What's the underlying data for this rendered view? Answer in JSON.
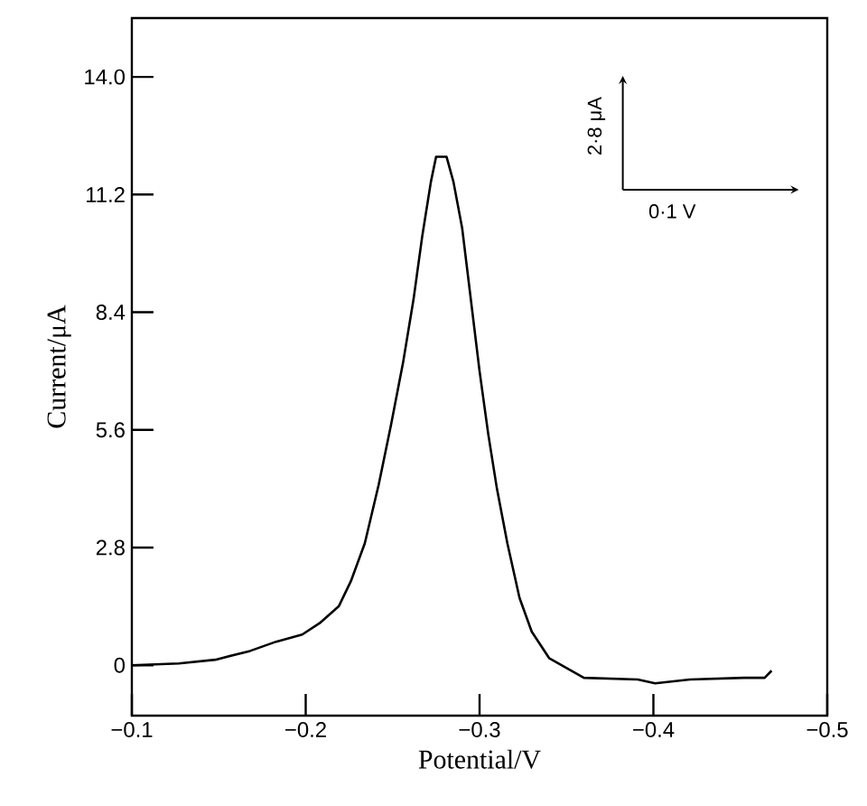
{
  "chart_data": {
    "type": "line",
    "xlabel": "Potential/V",
    "ylabel": "Current/μA",
    "annotations": [
      "2·8 μA",
      "0·1 V"
    ],
    "x": [
      -0.1,
      -0.127,
      -0.148,
      -0.168,
      -0.183,
      -0.198,
      -0.208,
      -0.219,
      -0.226,
      -0.234,
      -0.242,
      -0.249,
      -0.256,
      -0.262,
      -0.267,
      -0.272,
      -0.275,
      -0.281,
      -0.285,
      -0.29,
      -0.295,
      -0.3,
      -0.305,
      -0.31,
      -0.316,
      -0.323,
      -0.33,
      -0.34,
      -0.36,
      -0.391,
      -0.401,
      -0.421,
      -0.452,
      -0.464,
      -0.468
    ],
    "values": [
      0,
      0.04,
      0.13,
      0.34,
      0.56,
      0.73,
      1.0,
      1.4,
      2.0,
      2.9,
      4.3,
      5.7,
      7.2,
      8.7,
      10.2,
      11.5,
      12.1,
      12.1,
      11.5,
      10.4,
      8.7,
      7.0,
      5.5,
      4.2,
      2.9,
      1.6,
      0.8,
      0.17,
      -0.3,
      -0.34,
      -0.43,
      -0.34,
      -0.3,
      -0.3,
      -0.13
    ],
    "color": "#000000",
    "xlim": [
      -0.1,
      -0.5
    ],
    "ylim": [
      -1.2,
      15.4
    ],
    "xticks": [
      {
        "value": -0.1,
        "label": "−0.1"
      },
      {
        "value": -0.2,
        "label": "−0.2"
      },
      {
        "value": -0.3,
        "label": "−0.3"
      },
      {
        "value": -0.4,
        "label": "−0.4"
      },
      {
        "value": -0.5,
        "label": "−0.5"
      }
    ],
    "yticks": [
      0,
      2.8,
      5.6,
      8.4,
      11.2,
      {
        "value": 14.0,
        "label": "14.0"
      }
    ]
  }
}
